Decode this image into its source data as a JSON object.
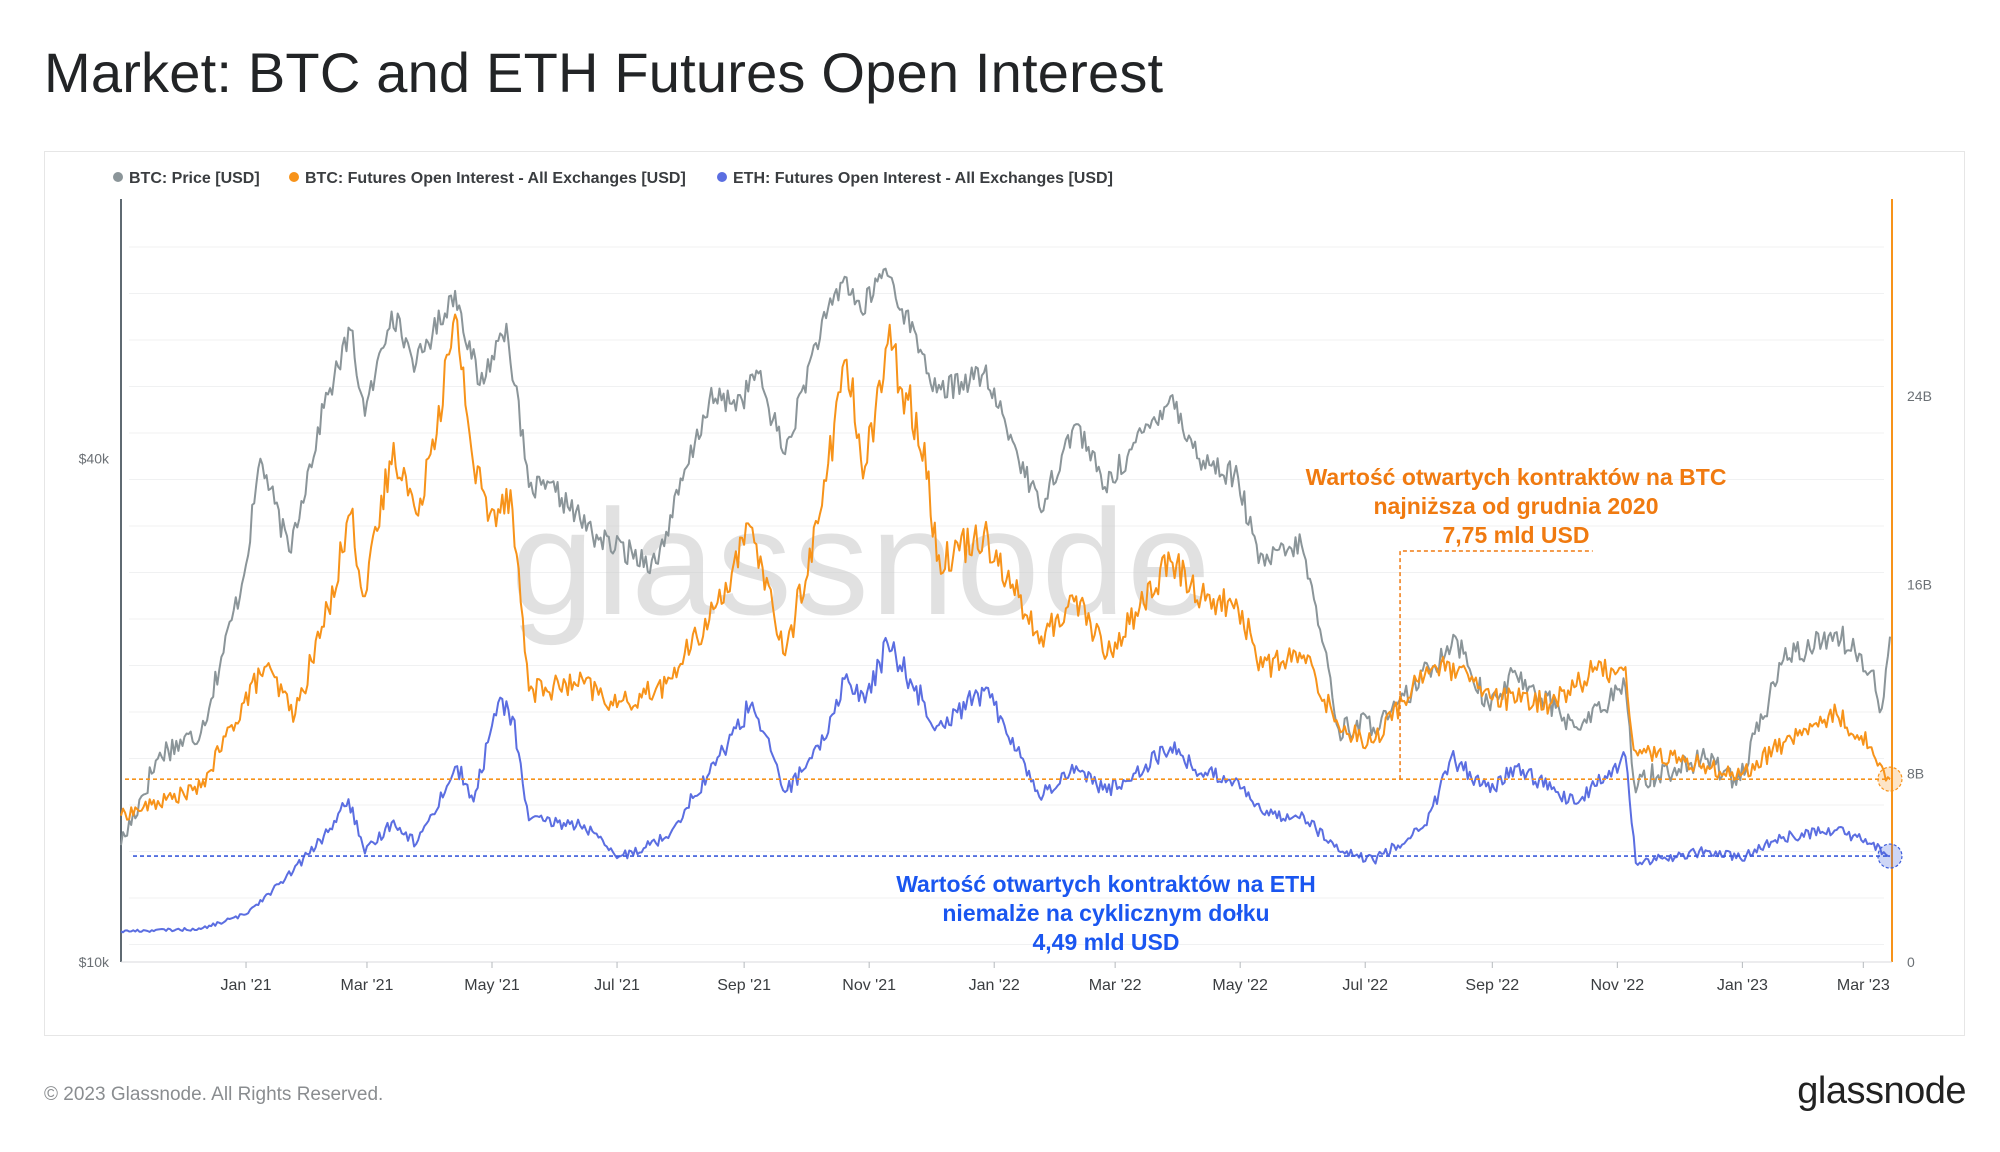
{
  "page": {
    "title": "Market: BTC and ETH Futures Open Interest"
  },
  "footer": {
    "copyright": "© 2023 Glassnode. All Rights Reserved.",
    "logo_text": "glassnode"
  },
  "watermark": "glassnode",
  "colors": {
    "btc_price": "#8b9599",
    "btc_oi": "#f7931a",
    "eth_oi": "#5b6ee1",
    "text": "#222426",
    "orange_note": "#f07a10",
    "blue_note": "#1a56f0"
  },
  "chart_data": {
    "type": "line",
    "title": "Market: BTC and ETH Futures Open Interest",
    "x_range": [
      "2020-11-01",
      "2023-03-15"
    ],
    "x_ticks": [
      {
        "label": "Jan '21",
        "date": "2021-01-01"
      },
      {
        "label": "Mar '21",
        "date": "2021-03-01"
      },
      {
        "label": "May '21",
        "date": "2021-05-01"
      },
      {
        "label": "Jul '21",
        "date": "2021-07-01"
      },
      {
        "label": "Sep '21",
        "date": "2021-09-01"
      },
      {
        "label": "Nov '21",
        "date": "2021-11-01"
      },
      {
        "label": "Jan '22",
        "date": "2022-01-01"
      },
      {
        "label": "Mar '22",
        "date": "2022-03-01"
      },
      {
        "label": "May '22",
        "date": "2022-05-01"
      },
      {
        "label": "Jul '22",
        "date": "2022-07-01"
      },
      {
        "label": "Sep '22",
        "date": "2022-09-01"
      },
      {
        "label": "Nov '22",
        "date": "2022-11-01"
      },
      {
        "label": "Jan '23",
        "date": "2023-01-01"
      },
      {
        "label": "Mar '23",
        "date": "2023-03-01"
      }
    ],
    "left_axis": {
      "scale": "log",
      "range": [
        10000,
        80000
      ],
      "ticks": [
        {
          "label": "$10k",
          "value": 10000
        },
        {
          "label": "$40k",
          "value": 40000
        }
      ]
    },
    "right_axis": {
      "scale": "linear",
      "unit": "USD",
      "range": [
        0,
        32000000000
      ],
      "ticks": [
        {
          "label": "0",
          "value": 0
        },
        {
          "label": "8B",
          "value": 8000000000
        },
        {
          "label": "16B",
          "value": 16000000000
        },
        {
          "label": "24B",
          "value": 24000000000
        }
      ]
    },
    "series": [
      {
        "name": "BTC: Price [USD]",
        "color": "#8b9599",
        "axis": "left",
        "legend": "BTC: Price [USD]",
        "points": [
          [
            "2020-11-01",
            13800
          ],
          [
            "2020-11-20",
            17800
          ],
          [
            "2020-12-10",
            18800
          ],
          [
            "2020-12-31",
            29000
          ],
          [
            "2021-01-08",
            40000
          ],
          [
            "2021-01-22",
            31000
          ],
          [
            "2021-02-08",
            46000
          ],
          [
            "2021-02-21",
            57000
          ],
          [
            "2021-02-28",
            45000
          ],
          [
            "2021-03-13",
            60000
          ],
          [
            "2021-03-25",
            52000
          ],
          [
            "2021-04-13",
            63500
          ],
          [
            "2021-04-25",
            49000
          ],
          [
            "2021-05-08",
            58000
          ],
          [
            "2021-05-19",
            37000
          ],
          [
            "2021-06-01",
            36500
          ],
          [
            "2021-06-22",
            32000
          ],
          [
            "2021-07-20",
            30000
          ],
          [
            "2021-08-15",
            47000
          ],
          [
            "2021-08-31",
            47000
          ],
          [
            "2021-09-07",
            51000
          ],
          [
            "2021-09-21",
            40500
          ],
          [
            "2021-10-06",
            55000
          ],
          [
            "2021-10-20",
            66000
          ],
          [
            "2021-10-28",
            60000
          ],
          [
            "2021-11-09",
            67500
          ],
          [
            "2021-11-26",
            54000
          ],
          [
            "2021-12-04",
            48000
          ],
          [
            "2021-12-27",
            50700
          ],
          [
            "2022-01-10",
            42000
          ],
          [
            "2022-01-23",
            35000
          ],
          [
            "2022-02-10",
            44000
          ],
          [
            "2022-02-24",
            37000
          ],
          [
            "2022-03-28",
            47500
          ],
          [
            "2022-04-11",
            40000
          ],
          [
            "2022-04-30",
            38000
          ],
          [
            "2022-05-10",
            30000
          ],
          [
            "2022-05-31",
            31500
          ],
          [
            "2022-06-13",
            22500
          ],
          [
            "2022-06-18",
            19000
          ],
          [
            "2022-07-12",
            19500
          ],
          [
            "2022-08-14",
            24500
          ],
          [
            "2022-08-31",
            20000
          ],
          [
            "2022-09-12",
            22300
          ],
          [
            "2022-10-12",
            19100
          ],
          [
            "2022-11-05",
            21300
          ],
          [
            "2022-11-09",
            16500
          ],
          [
            "2022-12-15",
            17500
          ],
          [
            "2022-12-31",
            16500
          ],
          [
            "2023-01-21",
            23000
          ],
          [
            "2023-02-16",
            24800
          ],
          [
            "2023-03-05",
            22300
          ],
          [
            "2023-03-10",
            20100
          ],
          [
            "2023-03-14",
            24500
          ]
        ]
      },
      {
        "name": "BTC: Futures Open Interest - All Exchanges [USD]",
        "color": "#f7931a",
        "axis": "right",
        "legend": "BTC: Futures Open Interest - All Exchanges [USD]",
        "points": [
          [
            "2020-11-01",
            6200000000
          ],
          [
            "2020-12-10",
            7400000000
          ],
          [
            "2020-12-31",
            11000000000
          ],
          [
            "2021-01-10",
            12500000000
          ],
          [
            "2021-01-25",
            10500000000
          ],
          [
            "2021-02-10",
            15000000000
          ],
          [
            "2021-02-21",
            19000000000
          ],
          [
            "2021-02-28",
            15500000000
          ],
          [
            "2021-03-14",
            22000000000
          ],
          [
            "2021-03-25",
            19000000000
          ],
          [
            "2021-04-14",
            27200000000
          ],
          [
            "2021-04-22",
            21000000000
          ],
          [
            "2021-04-30",
            19000000000
          ],
          [
            "2021-05-10",
            20000000000
          ],
          [
            "2021-05-19",
            11500000000
          ],
          [
            "2021-06-15",
            11800000000
          ],
          [
            "2021-07-01",
            10800000000
          ],
          [
            "2021-07-25",
            11800000000
          ],
          [
            "2021-08-15",
            14500000000
          ],
          [
            "2021-09-05",
            18400000000
          ],
          [
            "2021-09-21",
            13000000000
          ],
          [
            "2021-10-08",
            19000000000
          ],
          [
            "2021-10-20",
            25500000000
          ],
          [
            "2021-10-30",
            21000000000
          ],
          [
            "2021-11-10",
            26200000000
          ],
          [
            "2021-11-28",
            22000000000
          ],
          [
            "2021-12-04",
            17000000000
          ],
          [
            "2021-12-27",
            18200000000
          ],
          [
            "2022-01-10",
            16000000000
          ],
          [
            "2022-01-23",
            13500000000
          ],
          [
            "2022-02-10",
            15500000000
          ],
          [
            "2022-02-25",
            13000000000
          ],
          [
            "2022-03-28",
            17000000000
          ],
          [
            "2022-04-12",
            15500000000
          ],
          [
            "2022-04-30",
            15000000000
          ],
          [
            "2022-05-12",
            12500000000
          ],
          [
            "2022-06-01",
            13000000000
          ],
          [
            "2022-06-18",
            10000000000
          ],
          [
            "2022-07-05",
            9300000000
          ],
          [
            "2022-07-31",
            12500000000
          ],
          [
            "2022-08-15",
            12300000000
          ],
          [
            "2022-08-31",
            11200000000
          ],
          [
            "2022-09-30",
            11000000000
          ],
          [
            "2022-10-20",
            12300000000
          ],
          [
            "2022-11-05",
            12500000000
          ],
          [
            "2022-11-09",
            9000000000
          ],
          [
            "2022-12-15",
            8300000000
          ],
          [
            "2022-12-31",
            7900000000
          ],
          [
            "2023-01-21",
            9300000000
          ],
          [
            "2023-02-16",
            10500000000
          ],
          [
            "2023-03-05",
            9100000000
          ],
          [
            "2023-03-14",
            7750000000
          ]
        ]
      },
      {
        "name": "ETH: Futures Open Interest - All Exchanges [USD]",
        "color": "#5b6ee1",
        "axis": "right",
        "legend": "ETH: Futures Open Interest - All Exchanges [USD]",
        "points": [
          [
            "2020-11-01",
            1300000000
          ],
          [
            "2020-12-10",
            1400000000
          ],
          [
            "2020-12-31",
            2000000000
          ],
          [
            "2021-01-20",
            3500000000
          ],
          [
            "2021-02-10",
            5500000000
          ],
          [
            "2021-02-20",
            6900000000
          ],
          [
            "2021-02-28",
            4600000000
          ],
          [
            "2021-03-14",
            6000000000
          ],
          [
            "2021-03-25",
            5000000000
          ],
          [
            "2021-04-14",
            8300000000
          ],
          [
            "2021-04-22",
            6800000000
          ],
          [
            "2021-05-04",
            11000000000
          ],
          [
            "2021-05-11",
            10400000000
          ],
          [
            "2021-05-19",
            6000000000
          ],
          [
            "2021-06-15",
            5800000000
          ],
          [
            "2021-07-01",
            4400000000
          ],
          [
            "2021-07-25",
            5300000000
          ],
          [
            "2021-08-15",
            8000000000
          ],
          [
            "2021-09-05",
            11000000000
          ],
          [
            "2021-09-21",
            7200000000
          ],
          [
            "2021-10-08",
            9000000000
          ],
          [
            "2021-10-20",
            12000000000
          ],
          [
            "2021-10-30",
            11000000000
          ],
          [
            "2021-11-10",
            13500000000
          ],
          [
            "2021-11-28",
            11000000000
          ],
          [
            "2021-12-04",
            10000000000
          ],
          [
            "2021-12-27",
            11500000000
          ],
          [
            "2022-01-10",
            9500000000
          ],
          [
            "2022-01-23",
            7000000000
          ],
          [
            "2022-02-10",
            8300000000
          ],
          [
            "2022-02-25",
            7200000000
          ],
          [
            "2022-03-28",
            9100000000
          ],
          [
            "2022-04-12",
            8000000000
          ],
          [
            "2022-04-30",
            7700000000
          ],
          [
            "2022-05-12",
            6300000000
          ],
          [
            "2022-06-01",
            6200000000
          ],
          [
            "2022-06-18",
            4700000000
          ],
          [
            "2022-07-05",
            4300000000
          ],
          [
            "2022-07-31",
            5800000000
          ],
          [
            "2022-08-12",
            8700000000
          ],
          [
            "2022-08-31",
            7200000000
          ],
          [
            "2022-09-12",
            8300000000
          ],
          [
            "2022-10-12",
            6700000000
          ],
          [
            "2022-11-05",
            8700000000
          ],
          [
            "2022-11-10",
            4200000000
          ],
          [
            "2022-12-15",
            4700000000
          ],
          [
            "2022-12-31",
            4400000000
          ],
          [
            "2023-01-21",
            5300000000
          ],
          [
            "2023-02-16",
            5600000000
          ],
          [
            "2023-03-05",
            5000000000
          ],
          [
            "2023-03-14",
            4490000000
          ]
        ]
      }
    ],
    "reference_lines": [
      {
        "series": "BTC: Futures Open Interest - All Exchanges [USD]",
        "value": 7750000000,
        "color": "#f7931a",
        "style": "dashed"
      },
      {
        "series": "ETH: Futures Open Interest - All Exchanges [USD]",
        "value": 4490000000,
        "color": "#3b5bdb",
        "style": "dashed"
      }
    ],
    "annotations": [
      {
        "id": "btc",
        "color": "#f07a10",
        "lines": [
          "Wartość otwartych kontraktów na BTC",
          "najniższa od grudnia 2020",
          "7,75 mld USD"
        ]
      },
      {
        "id": "eth",
        "color": "#1a56f0",
        "lines": [
          "Wartość otwartych kontraktów na ETH",
          "niemalże na cyklicznym dołku",
          "4,49 mld USD"
        ]
      }
    ]
  }
}
